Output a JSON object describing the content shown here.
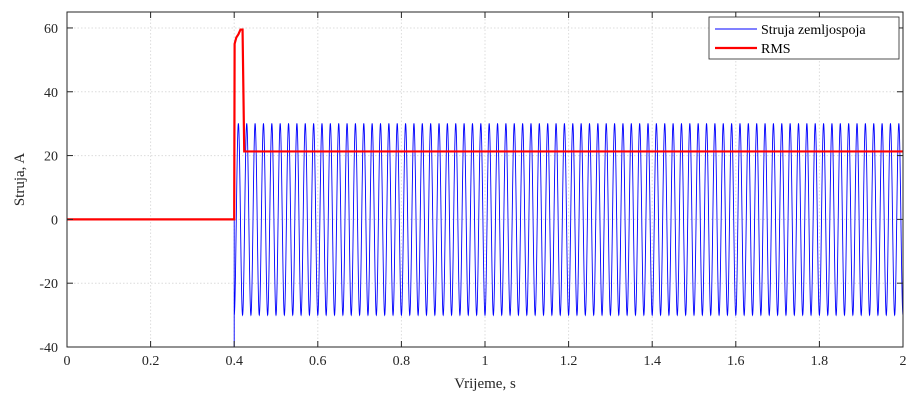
{
  "chart_data": {
    "type": "line",
    "xlabel": "Vrijeme, s",
    "ylabel": "Struja, A",
    "xlim": [
      0,
      2
    ],
    "ylim": [
      -40,
      65
    ],
    "xticks": [
      0,
      0.2,
      0.4,
      0.6,
      0.8,
      1,
      1.2,
      1.4,
      1.6,
      1.8,
      2
    ],
    "xtick_labels": [
      "0",
      "0.2",
      "0.4",
      "0.6",
      "0.8",
      "1",
      "1.2",
      "1.4",
      "1.6",
      "1.8",
      "2"
    ],
    "yticks": [
      -40,
      -20,
      0,
      20,
      40,
      60
    ],
    "ytick_labels": [
      "-40",
      "-20",
      "0",
      "20",
      "40",
      "60"
    ],
    "grid": true,
    "legend_position": "top-right",
    "series": [
      {
        "name": "Struja zemljospoja",
        "color": "#0000ff",
        "kind": "sinusoid",
        "frequency_hz": 50,
        "amplitude": 30,
        "start_time": 0.4,
        "initial_minimum": -40,
        "value_before_start": 0
      },
      {
        "name": "RMS",
        "color": "#ff0000",
        "x": [
          0,
          0.4,
          0.401,
          0.405,
          0.41,
          0.415,
          0.42,
          0.424,
          2
        ],
        "y": [
          0,
          0,
          55,
          57,
          58,
          59.5,
          59.5,
          21.3,
          21.3
        ]
      }
    ]
  }
}
